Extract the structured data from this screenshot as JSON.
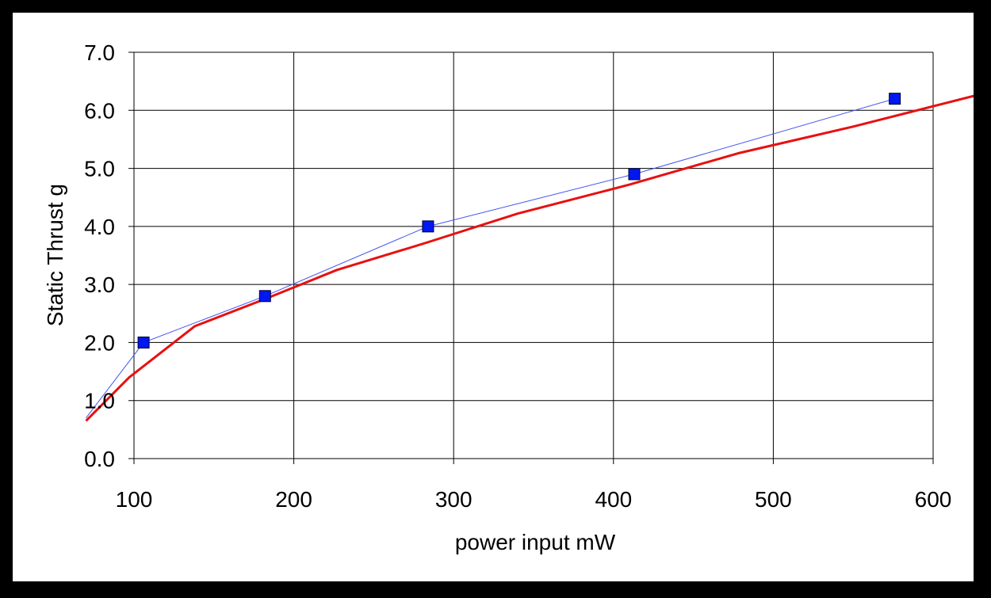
{
  "chart_data": {
    "type": "line",
    "title": "",
    "xlabel": "power input mW",
    "ylabel": "Static Thrust g",
    "xlim": [
      100,
      600
    ],
    "ylim": [
      0,
      7
    ],
    "x_ticks": [
      "100",
      "200",
      "300",
      "400",
      "500",
      "600"
    ],
    "y_ticks": [
      "0.0",
      "1.0",
      "2.0",
      "3.0",
      "4.0",
      "5.0",
      "6.0",
      "7.0"
    ],
    "grid": true,
    "legend": "none",
    "series": [
      {
        "kind": "measured",
        "marker": "square",
        "color": "#0018F0",
        "line_color": "#4455EE",
        "x": [
          106,
          182,
          284,
          413,
          576
        ],
        "y": [
          2.0,
          2.8,
          4.0,
          4.9,
          6.2
        ]
      },
      {
        "kind": "fit",
        "marker": "none",
        "color": "#E81010",
        "x": [
          70,
          97,
          138,
          182,
          227,
          283,
          340,
          410,
          478,
          550,
          630
        ],
        "y": [
          0.65,
          1.4,
          2.28,
          2.75,
          3.25,
          3.72,
          4.22,
          4.72,
          5.26,
          5.72,
          6.28
        ]
      }
    ],
    "extrapolated_trend": {
      "x": [
        70,
        106,
        182,
        284,
        413,
        576
      ],
      "y": [
        0.7,
        2.0,
        2.8,
        4.0,
        4.9,
        6.2
      ]
    }
  }
}
